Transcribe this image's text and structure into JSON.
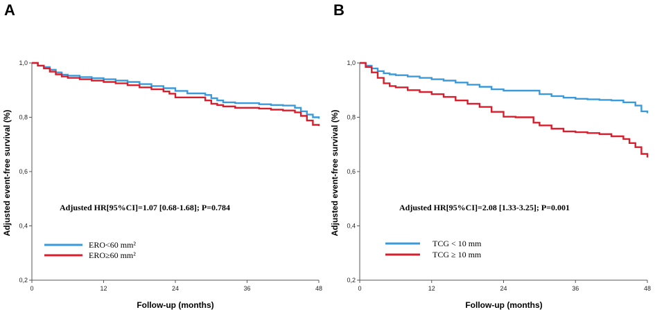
{
  "chart_data": [
    {
      "type": "line",
      "panel_label": "A",
      "xlabel": "Follow-up (months)",
      "ylabel": "Adjusted event-free survival (%)",
      "xlim": [
        0,
        48
      ],
      "ylim": [
        0.2,
        1.0
      ],
      "xticks": [
        0,
        12,
        24,
        36,
        48
      ],
      "xtick_labels": [
        "0",
        "12",
        "24",
        "36",
        "48"
      ],
      "yticks": [
        0.2,
        0.4,
        0.6,
        0.8,
        1.0
      ],
      "ytick_labels": [
        "0,2",
        "0,4",
        "0,6",
        "0,8",
        "1,0"
      ],
      "annotation": "Adjusted HR[95%CI]=1.07 [0.68-1.68]; P=0.784",
      "series": [
        {
          "name": "ERO<60 mm²",
          "color": "#3a9ad9",
          "x": [
            0,
            1,
            2,
            3,
            4,
            5,
            6,
            8,
            10,
            12,
            14,
            16,
            18,
            20,
            22,
            24,
            26,
            28,
            29,
            30,
            31,
            32,
            34,
            36,
            38,
            40,
            42,
            44,
            45,
            46,
            47,
            48
          ],
          "y": [
            1.0,
            0.99,
            0.985,
            0.975,
            0.965,
            0.957,
            0.953,
            0.948,
            0.944,
            0.94,
            0.935,
            0.93,
            0.922,
            0.915,
            0.907,
            0.897,
            0.888,
            0.888,
            0.882,
            0.87,
            0.862,
            0.855,
            0.852,
            0.852,
            0.848,
            0.845,
            0.843,
            0.835,
            0.822,
            0.81,
            0.8,
            0.795
          ]
        },
        {
          "name": "ERO≥60 mm²",
          "color": "#d81e2c",
          "x": [
            0,
            1,
            2,
            3,
            4,
            5,
            6,
            8,
            10,
            12,
            14,
            16,
            18,
            20,
            22,
            23,
            24,
            26,
            28,
            29,
            30,
            31,
            32,
            34,
            36,
            38,
            40,
            42,
            44,
            45,
            46,
            47,
            48
          ],
          "y": [
            1.0,
            0.99,
            0.98,
            0.968,
            0.958,
            0.95,
            0.945,
            0.94,
            0.935,
            0.93,
            0.925,
            0.918,
            0.91,
            0.903,
            0.895,
            0.887,
            0.873,
            0.873,
            0.873,
            0.862,
            0.85,
            0.845,
            0.84,
            0.835,
            0.835,
            0.832,
            0.828,
            0.825,
            0.818,
            0.805,
            0.788,
            0.772,
            0.768
          ]
        }
      ]
    },
    {
      "type": "line",
      "panel_label": "B",
      "xlabel": "Follow-up (months)",
      "ylabel": "Adjusted event-free survival (%)",
      "xlim": [
        0,
        48
      ],
      "ylim": [
        0.2,
        1.0
      ],
      "xticks": [
        0,
        12,
        24,
        36,
        48
      ],
      "xtick_labels": [
        "0",
        "12",
        "24",
        "36",
        "48"
      ],
      "yticks": [
        0.2,
        0.4,
        0.6,
        0.8,
        1.0
      ],
      "ytick_labels": [
        "0,2",
        "0,4",
        "0,6",
        "0,8",
        "1,0"
      ],
      "annotation": "Adjusted HR[95%CI]=2.08 [1.33-3.25]; P=0.001",
      "series": [
        {
          "name": "TCG < 10 mm",
          "color": "#3a9ad9",
          "x": [
            0,
            1,
            2,
            3,
            4,
            5,
            6,
            8,
            10,
            12,
            14,
            16,
            18,
            20,
            22,
            24,
            26,
            28,
            30,
            32,
            34,
            36,
            38,
            40,
            42,
            44,
            46,
            47,
            48
          ],
          "y": [
            1.0,
            0.99,
            0.98,
            0.97,
            0.962,
            0.958,
            0.955,
            0.95,
            0.945,
            0.94,
            0.935,
            0.928,
            0.92,
            0.912,
            0.903,
            0.898,
            0.898,
            0.898,
            0.885,
            0.878,
            0.872,
            0.868,
            0.866,
            0.864,
            0.862,
            0.855,
            0.843,
            0.822,
            0.815
          ]
        },
        {
          "name": "TCG ≥ 10 mm",
          "color": "#d81e2c",
          "x": [
            0,
            1,
            2,
            3,
            4,
            5,
            6,
            8,
            10,
            12,
            14,
            16,
            18,
            20,
            22,
            24,
            26,
            28,
            29,
            30,
            32,
            34,
            36,
            38,
            40,
            42,
            44,
            45,
            46,
            47,
            48
          ],
          "y": [
            1.0,
            0.985,
            0.965,
            0.945,
            0.925,
            0.915,
            0.91,
            0.9,
            0.893,
            0.885,
            0.875,
            0.862,
            0.85,
            0.838,
            0.82,
            0.802,
            0.8,
            0.8,
            0.78,
            0.77,
            0.758,
            0.748,
            0.745,
            0.742,
            0.738,
            0.73,
            0.72,
            0.705,
            0.69,
            0.665,
            0.652
          ]
        }
      ]
    }
  ]
}
